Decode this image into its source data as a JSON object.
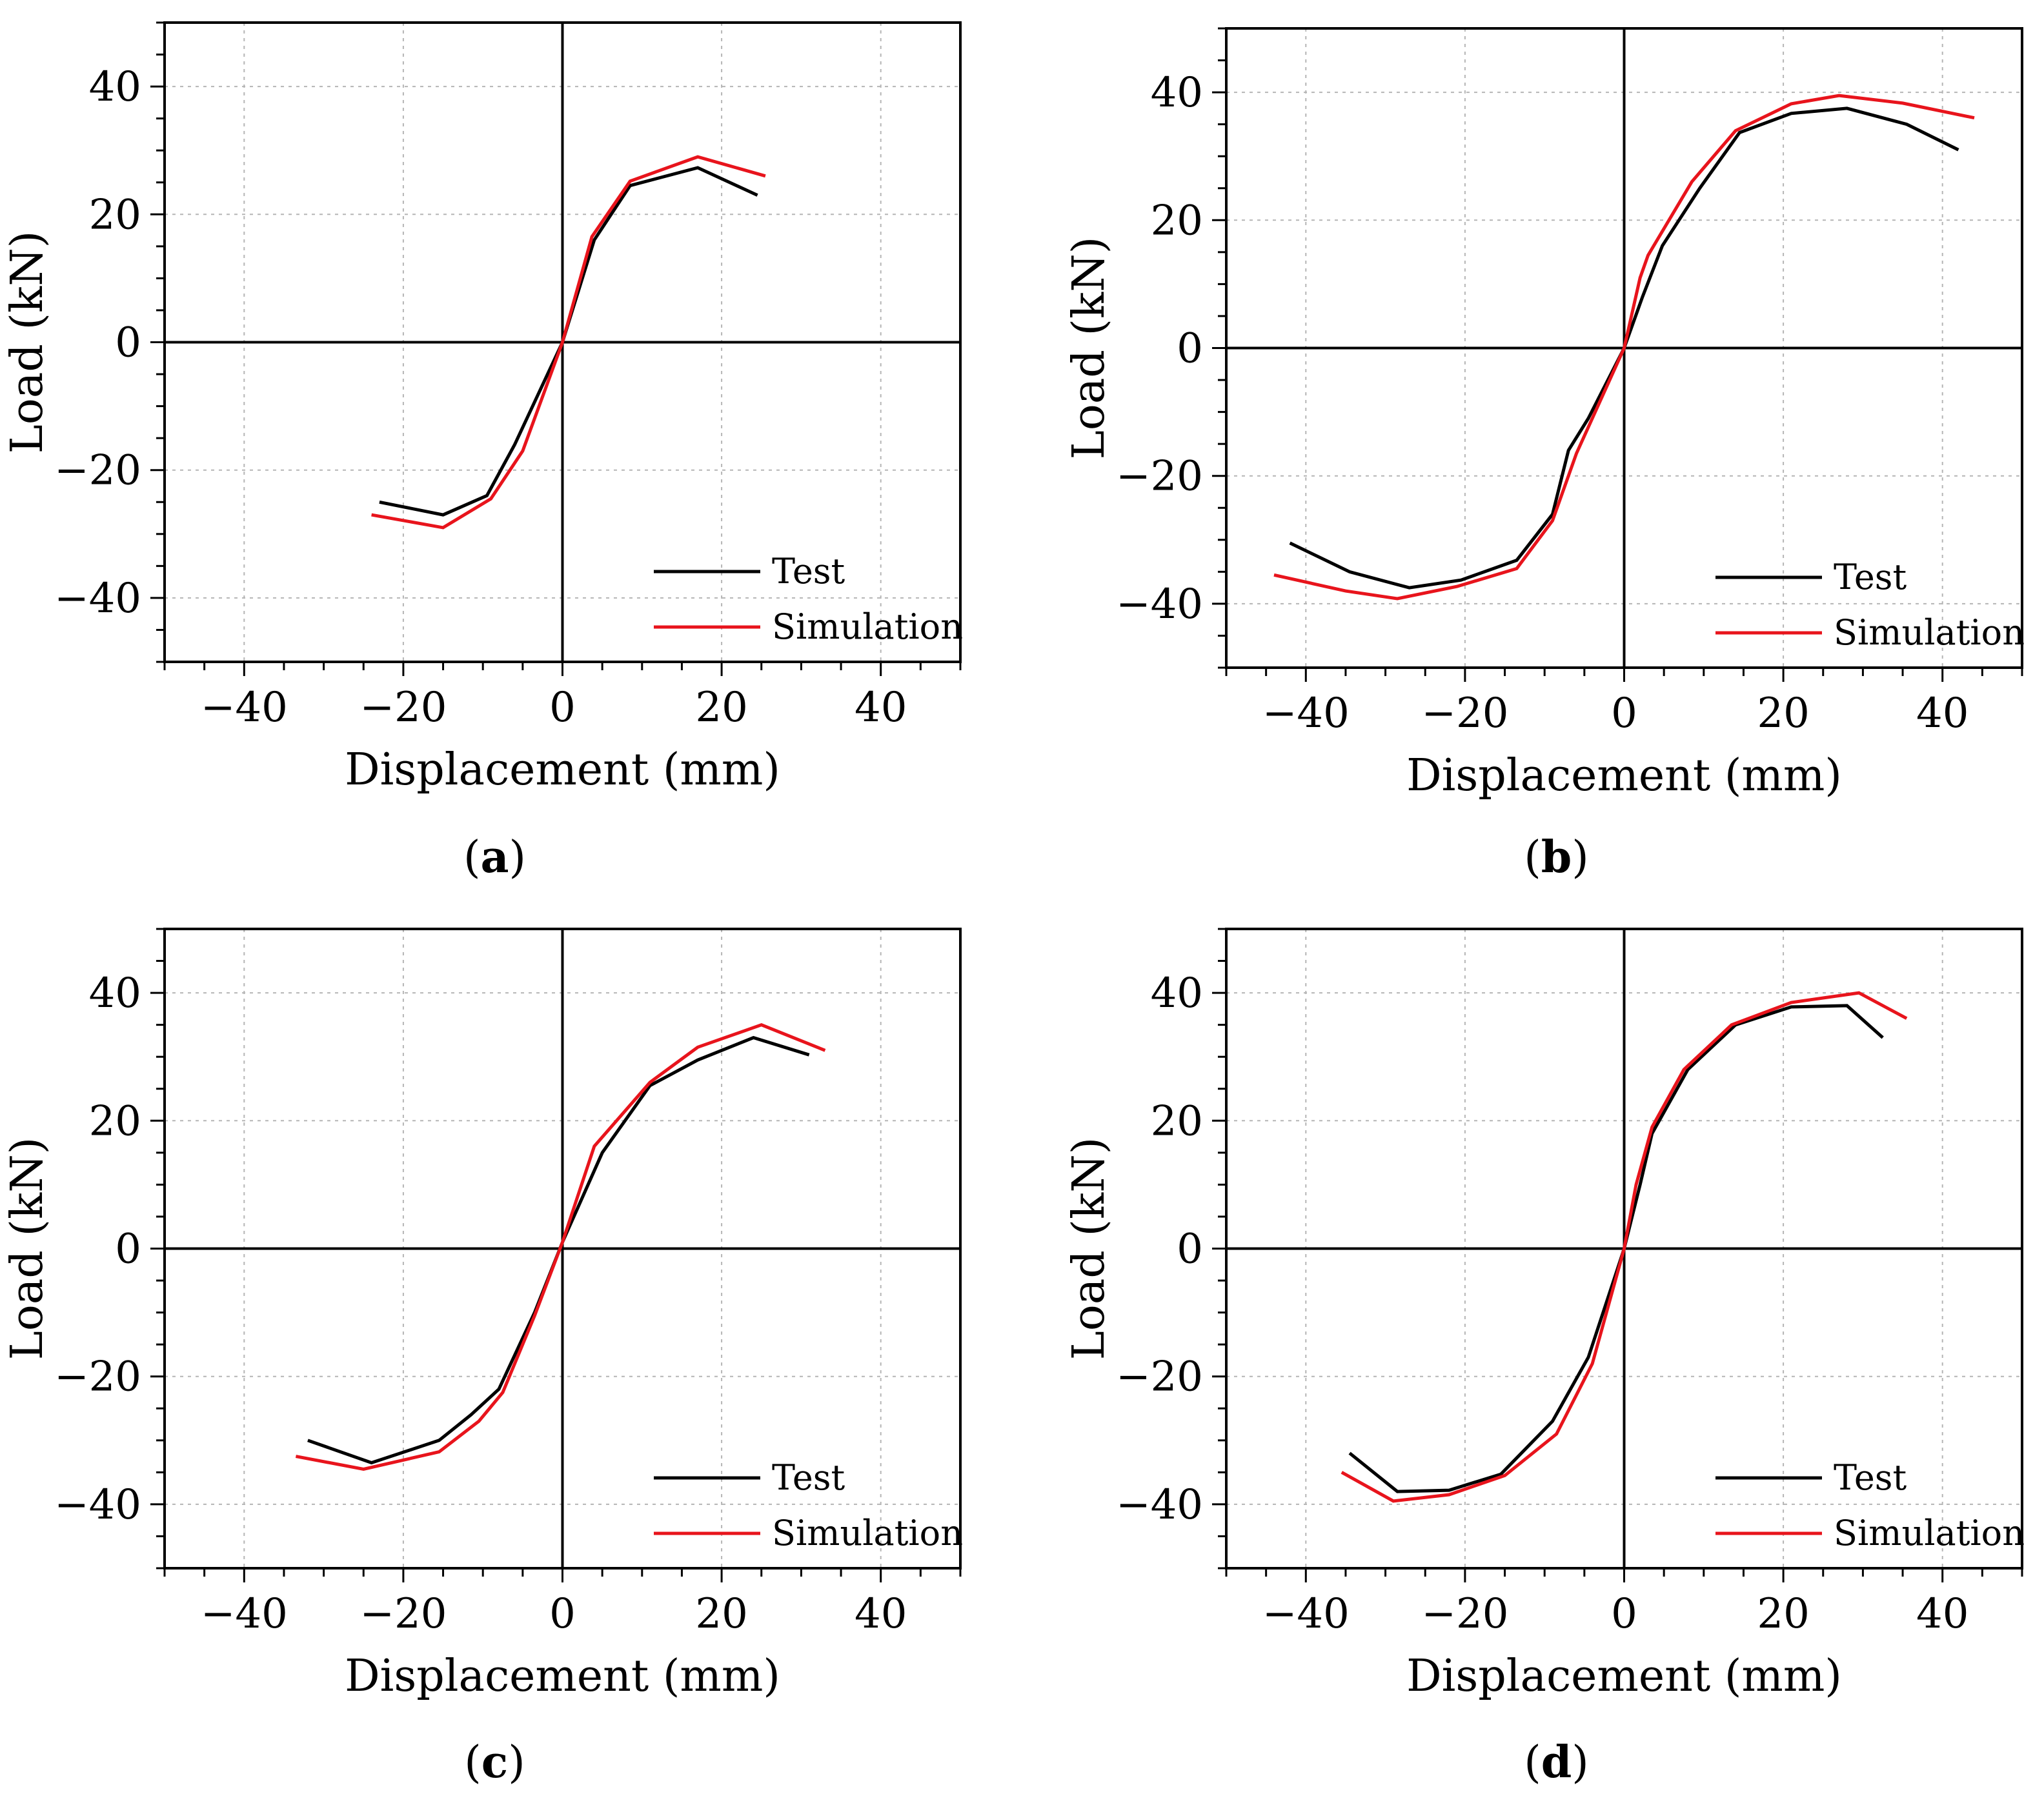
{
  "figure": {
    "panels": [
      {
        "caption_letter": "a"
      },
      {
        "caption_letter": "b"
      },
      {
        "caption_letter": "c"
      },
      {
        "caption_letter": "d"
      }
    ]
  },
  "colors": {
    "test": "#000000",
    "simulation": "#e8141c",
    "grid": "#b5b5b5",
    "axis": "#000000"
  },
  "chart_data": [
    {
      "type": "line",
      "xlabel": "Displacement (mm)",
      "ylabel": "Load (kN)",
      "xlim": [
        -50,
        50
      ],
      "ylim": [
        -50,
        50
      ],
      "xticks": [
        -40,
        -20,
        0,
        20,
        40
      ],
      "yticks": [
        -40,
        -20,
        0,
        20,
        40
      ],
      "tick_labels_x": [
        "−40",
        "−20",
        "0",
        "20",
        "40"
      ],
      "tick_labels_y": [
        "−40",
        "−20",
        "0",
        "20",
        "40"
      ],
      "grid": true,
      "legend_position": "bottom-right",
      "series": [
        {
          "name": "Test",
          "color": "#000000",
          "points": [
            [
              -23,
              -25
            ],
            [
              -15,
              -27
            ],
            [
              -9.5,
              -24
            ],
            [
              -6,
              -16
            ],
            [
              0,
              0
            ],
            [
              4,
              16
            ],
            [
              8.5,
              24.5
            ],
            [
              17,
              27.3
            ],
            [
              24.5,
              23
            ]
          ]
        },
        {
          "name": "Simulation",
          "color": "#e8141c",
          "points": [
            [
              -24,
              -27
            ],
            [
              -15,
              -29
            ],
            [
              -9,
              -24.5
            ],
            [
              -5,
              -17
            ],
            [
              0,
              0
            ],
            [
              3.7,
              16.5
            ],
            [
              8.5,
              25.2
            ],
            [
              17,
              29
            ],
            [
              25.5,
              26
            ]
          ]
        }
      ]
    },
    {
      "type": "line",
      "xlabel": "Displacement (mm)",
      "ylabel": "Load (kN)",
      "xlim": [
        -50,
        50
      ],
      "ylim": [
        -50,
        50
      ],
      "xticks": [
        -40,
        -20,
        0,
        20,
        40
      ],
      "yticks": [
        -40,
        -20,
        0,
        20,
        40
      ],
      "tick_labels_x": [
        "−40",
        "−20",
        "0",
        "20",
        "40"
      ],
      "tick_labels_y": [
        "−40",
        "−20",
        "0",
        "20",
        "40"
      ],
      "grid": true,
      "legend_position": "bottom-right",
      "series": [
        {
          "name": "Test",
          "color": "#000000",
          "points": [
            [
              -42,
              -30.5
            ],
            [
              -34.5,
              -35
            ],
            [
              -27,
              -37.5
            ],
            [
              -20.5,
              -36.3
            ],
            [
              -13.5,
              -33.2
            ],
            [
              -9,
              -26
            ],
            [
              -7,
              -16
            ],
            [
              -4.5,
              -11
            ],
            [
              0,
              0
            ],
            [
              2.3,
              8
            ],
            [
              4.8,
              16
            ],
            [
              9.5,
              25
            ],
            [
              14.5,
              33.7
            ],
            [
              21,
              36.7
            ],
            [
              28,
              37.5
            ],
            [
              35.5,
              35
            ],
            [
              42,
              31
            ]
          ]
        },
        {
          "name": "Simulation",
          "color": "#e8141c",
          "points": [
            [
              -44,
              -35.5
            ],
            [
              -35,
              -38
            ],
            [
              -28.5,
              -39.2
            ],
            [
              -21,
              -37.3
            ],
            [
              -13.5,
              -34.5
            ],
            [
              -9,
              -27
            ],
            [
              -6,
              -16.5
            ],
            [
              0,
              0
            ],
            [
              2,
              11
            ],
            [
              3,
              14.5
            ],
            [
              8.5,
              26
            ],
            [
              14,
              34
            ],
            [
              21,
              38.2
            ],
            [
              27,
              39.5
            ],
            [
              35,
              38.3
            ],
            [
              44,
              36
            ]
          ]
        }
      ]
    },
    {
      "type": "line",
      "xlabel": "Displacement (mm)",
      "ylabel": "Load (kN)",
      "xlim": [
        -50,
        50
      ],
      "ylim": [
        -50,
        50
      ],
      "xticks": [
        -40,
        -20,
        0,
        20,
        40
      ],
      "yticks": [
        -40,
        -20,
        0,
        20,
        40
      ],
      "tick_labels_x": [
        "−40",
        "−20",
        "0",
        "20",
        "40"
      ],
      "tick_labels_y": [
        "−40",
        "−20",
        "0",
        "20",
        "40"
      ],
      "grid": true,
      "legend_position": "bottom-right",
      "series": [
        {
          "name": "Test",
          "color": "#000000",
          "points": [
            [
              -32,
              -30
            ],
            [
              -24,
              -33.5
            ],
            [
              -15.5,
              -30
            ],
            [
              -11.5,
              -26
            ],
            [
              -8,
              -22
            ],
            [
              -3.5,
              -10
            ],
            [
              0,
              1
            ],
            [
              5,
              15
            ],
            [
              11,
              25.5
            ],
            [
              17,
              29.5
            ],
            [
              24,
              33
            ],
            [
              31,
              30.3
            ]
          ]
        },
        {
          "name": "Simulation",
          "color": "#e8141c",
          "points": [
            [
              -33.5,
              -32.5
            ],
            [
              -25,
              -34.5
            ],
            [
              -15.5,
              -31.8
            ],
            [
              -10.5,
              -27
            ],
            [
              -7.5,
              -22.5
            ],
            [
              -3.5,
              -10.5
            ],
            [
              0,
              1
            ],
            [
              4,
              16
            ],
            [
              11,
              26
            ],
            [
              17,
              31.5
            ],
            [
              25,
              35
            ],
            [
              33,
              31
            ]
          ]
        }
      ]
    },
    {
      "type": "line",
      "xlabel": "Displacement (mm)",
      "ylabel": "Load (kN)",
      "xlim": [
        -50,
        50
      ],
      "ylim": [
        -50,
        50
      ],
      "xticks": [
        -40,
        -20,
        0,
        20,
        40
      ],
      "yticks": [
        -40,
        -20,
        0,
        20,
        40
      ],
      "tick_labels_x": [
        "−40",
        "−20",
        "0",
        "20",
        "40"
      ],
      "tick_labels_y": [
        "−40",
        "−20",
        "0",
        "20",
        "40"
      ],
      "grid": true,
      "legend_position": "bottom-right",
      "series": [
        {
          "name": "Test",
          "color": "#000000",
          "points": [
            [
              -34.5,
              -32
            ],
            [
              -28.5,
              -38
            ],
            [
              -22,
              -37.8
            ],
            [
              -15.5,
              -35.3
            ],
            [
              -9,
              -27
            ],
            [
              -4.5,
              -17
            ],
            [
              0,
              0
            ],
            [
              2,
              10
            ],
            [
              3.5,
              18
            ],
            [
              8,
              28
            ],
            [
              14,
              35
            ],
            [
              21,
              37.8
            ],
            [
              28,
              38
            ],
            [
              32.5,
              33
            ]
          ]
        },
        {
          "name": "Simulation",
          "color": "#e8141c",
          "points": [
            [
              -35.5,
              -35
            ],
            [
              -29,
              -39.5
            ],
            [
              -22,
              -38.5
            ],
            [
              -15,
              -35.5
            ],
            [
              -8.5,
              -29
            ],
            [
              -4,
              -18
            ],
            [
              0,
              0
            ],
            [
              1.5,
              10
            ],
            [
              3.5,
              19
            ],
            [
              7.5,
              28
            ],
            [
              13.5,
              35
            ],
            [
              21,
              38.5
            ],
            [
              29.5,
              40
            ],
            [
              35.5,
              36
            ]
          ]
        }
      ]
    }
  ]
}
